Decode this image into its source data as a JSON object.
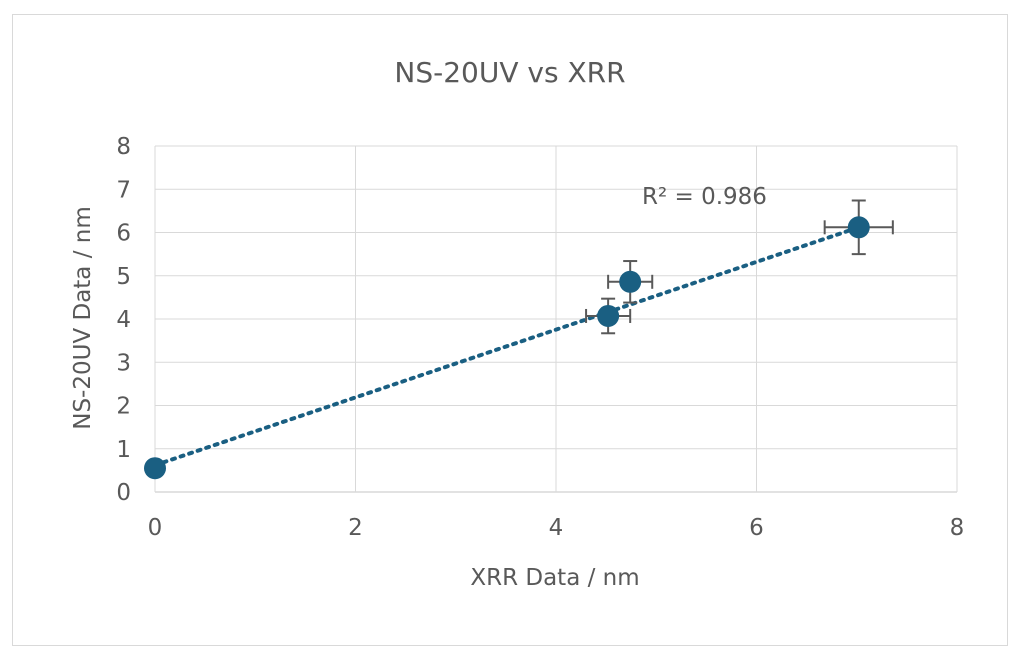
{
  "chart_data": {
    "type": "scatter",
    "title": "NS-20UV vs XRR",
    "xlabel": "XRR Data / nm",
    "ylabel": "NS-20UV  Data / nm",
    "xlim": [
      0,
      8
    ],
    "ylim": [
      0,
      8
    ],
    "x_ticks": [
      "0",
      "2",
      "4",
      "6",
      "8"
    ],
    "y_ticks": [
      "0",
      "1",
      "2",
      "3",
      "4",
      "5",
      "6",
      "7",
      "8"
    ],
    "grid": true,
    "points": [
      {
        "x": 0.0,
        "y": 0.55,
        "xerr": 0.0,
        "yerr": 0.0
      },
      {
        "x": 4.52,
        "y": 4.07,
        "xerr": 0.22,
        "yerr": 0.4
      },
      {
        "x": 4.74,
        "y": 4.86,
        "xerr": 0.22,
        "yerr": 0.48
      },
      {
        "x": 7.02,
        "y": 6.12,
        "xerr": 0.34,
        "yerr": 0.62
      }
    ],
    "trendline": {
      "type": "linear",
      "style": "dotted",
      "x": [
        0,
        7.02
      ],
      "y": [
        0.62,
        6.12
      ]
    },
    "r_squared_label": "R² = 0.986",
    "colors": {
      "marker": "#1a5f82",
      "trend": "#1a5f82",
      "errorbar": "#595959",
      "grid": "#d9d9d9",
      "text": "#595959"
    }
  }
}
